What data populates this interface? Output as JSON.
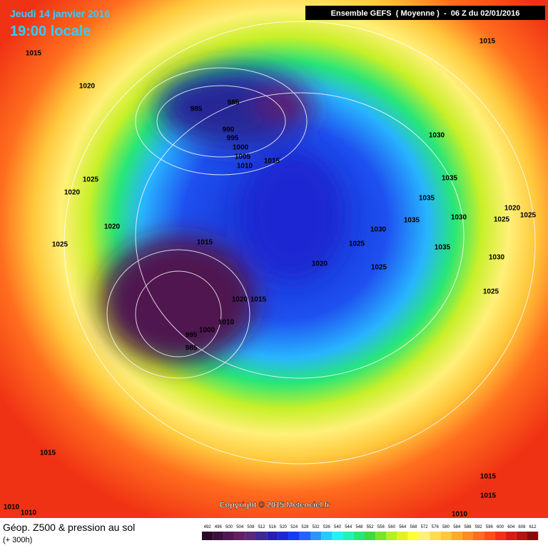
{
  "header": {
    "date": "Jeudi 14 janvier 2016",
    "time": "19:00 locale",
    "model": "Ensemble GEFS  ( Moyenne )  -  06 Z du 02/01/2016"
  },
  "copyright": "Copyright © 2015 Meteociel.fr",
  "footer": {
    "title": "Géop. Z500 & pression au sol",
    "lead": "(+ 300h)"
  },
  "legend": {
    "values": [
      492,
      496,
      500,
      504,
      508,
      512,
      516,
      520,
      524,
      528,
      532,
      536,
      540,
      544,
      548,
      552,
      556,
      560,
      564,
      568,
      572,
      576,
      580,
      584,
      588,
      592,
      596,
      600,
      604,
      608,
      612
    ],
    "colors": [
      "#2a0a2a",
      "#3c103c",
      "#501850",
      "#641e64",
      "#5a2878",
      "#3c2896",
      "#281eb4",
      "#1e28d2",
      "#143cf0",
      "#1e64ff",
      "#2896ff",
      "#28c8ff",
      "#28f0f0",
      "#28f0b4",
      "#28e678",
      "#3cdc3c",
      "#78e628",
      "#b4f028",
      "#e6f028",
      "#ffff3c",
      "#fff078",
      "#ffdc50",
      "#ffc83c",
      "#ffaa28",
      "#ff8c1e",
      "#ff6e1e",
      "#ff5014",
      "#f03214",
      "#d21e14",
      "#b41414",
      "#8c0a0a"
    ]
  },
  "isobars": [
    1015,
    1020,
    985,
    985,
    990,
    995,
    1000,
    1005,
    1010,
    1015,
    1030,
    1035,
    1035,
    1035,
    1030,
    1020,
    1025,
    1025,
    1035,
    1030,
    1025,
    1015,
    1025,
    1020,
    1020,
    1025,
    1015,
    1030,
    1025,
    1025,
    1020,
    1020,
    1015,
    1010,
    1000,
    995,
    985,
    1015,
    1015,
    1015,
    1010,
    1010,
    1010
  ]
}
